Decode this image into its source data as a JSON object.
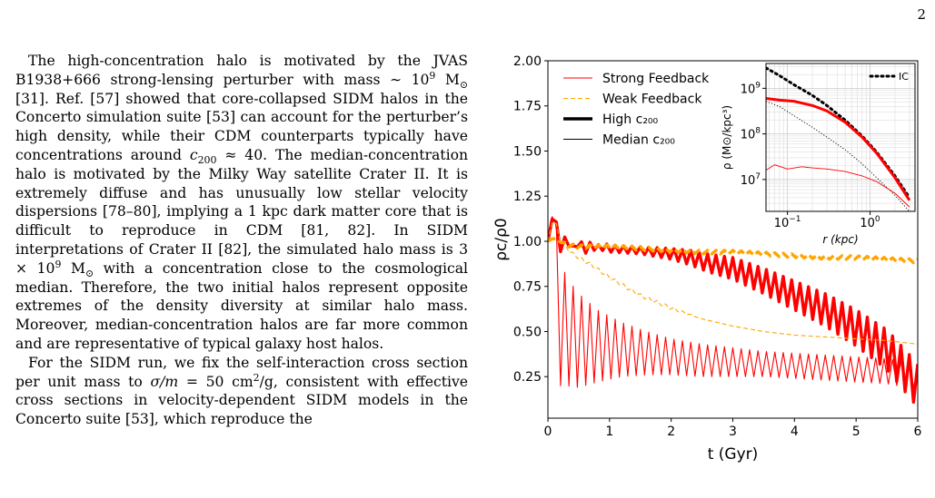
{
  "page": {
    "number": "2"
  },
  "text": {
    "p1": [
      {
        "t": "The high-concentration halo is motivated by the JVAS B1938+666 strong-lensing perturber with mass ∼ 10"
      },
      {
        "t": "9",
        "tag": "sup"
      },
      {
        "t": " M"
      },
      {
        "t": "⊙",
        "tag": "sub"
      },
      {
        "t": " [31]. Ref. [57] showed that core-collapsed SIDM halos in the Concerto simulation suite [53] can account for the perturber’s high density, while their CDM counterparts typically have concentrations around "
      },
      {
        "t": "c",
        "tag": "i"
      },
      {
        "t": "200",
        "tag": "sub"
      },
      {
        "t": " ≈ 40. The median-concentration halo is motivated by the Milky Way satellite Crater II. It is extremely diffuse and has unusually low stellar velocity dispersions [78–80], implying a 1 kpc dark matter core that is difficult to reproduce in CDM [81, 82]. In SIDM interpretations of Crater II [82], the simulated halo mass is 3 × 10"
      },
      {
        "t": "9",
        "tag": "sup"
      },
      {
        "t": " M"
      },
      {
        "t": "⊙",
        "tag": "sub"
      },
      {
        "t": " with a concentration close to the cosmological median. Therefore, the two initial halos represent opposite extremes of the density diversity at similar halo mass. Moreover, median-concentration halos are far more common and are representative of typical galaxy host halos."
      }
    ],
    "p2": [
      {
        "t": "For the SIDM run, we fix the self-interaction cross section per unit mass to "
      },
      {
        "t": "σ/m",
        "tag": "i"
      },
      {
        "t": " = 50 cm"
      },
      {
        "t": "2",
        "tag": "sup"
      },
      {
        "t": "/g, consistent with effective cross sections in velocity-dependent SIDM models in the Concerto suite [53], which reproduce the"
      }
    ]
  },
  "chart_data": [
    {
      "type": "line",
      "xlabel": "t (Gyr)",
      "ylabel": "ρc/ρ0",
      "xlim": [
        0,
        6
      ],
      "ylim": [
        0.02,
        2.0
      ],
      "xticks": [
        "0",
        "1",
        "2",
        "3",
        "4",
        "5",
        "6"
      ],
      "yticks": [
        "0.25",
        "0.50",
        "0.75",
        "1.00",
        "1.25",
        "1.50",
        "1.75",
        "2.00"
      ],
      "legend_location": "upper-left",
      "legend": [
        {
          "label": "Strong Feedback",
          "color": "#ff0000",
          "style": "solid",
          "weight": "thin"
        },
        {
          "label": "Weak Feedback",
          "color": "#ffa500",
          "style": "dashed",
          "weight": "thin"
        },
        {
          "label": "High c₂₀₀",
          "color": "#000000",
          "style": "solid",
          "weight": "thick"
        },
        {
          "label": "Median c₂₀₀",
          "color": "#000000",
          "style": "solid",
          "weight": "thin"
        }
      ],
      "series": [
        {
          "color": "#ff0000",
          "style": "solid",
          "weight": "thick",
          "x": [
            0.0,
            0.1,
            0.2,
            0.3,
            0.4,
            0.5,
            0.6,
            0.7,
            0.8,
            0.9,
            1.0,
            1.5,
            2.0,
            2.3,
            2.6,
            3.0,
            3.5,
            4.0,
            4.5,
            5.0,
            5.5,
            6.0
          ],
          "y": [
            1.0,
            1.18,
            0.96,
            1.02,
            0.95,
            1.0,
            0.95,
            0.98,
            0.96,
            0.97,
            0.96,
            0.95,
            0.93,
            0.91,
            0.88,
            0.85,
            0.78,
            0.7,
            0.62,
            0.52,
            0.4,
            0.2
          ],
          "osc_amp": [
            0.0,
            0.0,
            0.02,
            0.02,
            0.02,
            0.02,
            0.02,
            0.02,
            0.02,
            0.02,
            0.02,
            0.02,
            0.03,
            0.04,
            0.05,
            0.06,
            0.07,
            0.08,
            0.09,
            0.1,
            0.11,
            0.12
          ]
        },
        {
          "color": "#ff0000",
          "style": "solid",
          "weight": "thin",
          "x": [
            0.0,
            0.1,
            0.2,
            0.3,
            0.5,
            0.8,
            1.2,
            1.6,
            2.0,
            2.5,
            3.0,
            3.5,
            4.0,
            4.5,
            5.0,
            5.5,
            6.0
          ],
          "y": [
            1.0,
            1.2,
            0.55,
            0.5,
            0.45,
            0.42,
            0.4,
            0.38,
            0.36,
            0.34,
            0.33,
            0.32,
            0.31,
            0.3,
            0.29,
            0.28,
            0.25
          ],
          "osc_amp": [
            0.0,
            0.0,
            0.35,
            0.3,
            0.26,
            0.2,
            0.15,
            0.12,
            0.1,
            0.09,
            0.08,
            0.07,
            0.07,
            0.07,
            0.07,
            0.07,
            0.07
          ]
        },
        {
          "color": "#ffa500",
          "style": "dashed",
          "weight": "thick",
          "x": [
            0.0,
            0.1,
            0.3,
            0.5,
            1.0,
            1.5,
            2.0,
            2.5,
            3.0,
            3.5,
            4.0,
            4.5,
            5.0,
            5.5,
            6.0
          ],
          "y": [
            1.0,
            1.02,
            0.98,
            0.97,
            0.97,
            0.96,
            0.95,
            0.94,
            0.94,
            0.93,
            0.92,
            0.91,
            0.91,
            0.9,
            0.89
          ],
          "osc_amp": [
            0.0,
            0.0,
            0.01,
            0.01,
            0.01,
            0.01,
            0.01,
            0.01,
            0.01,
            0.01,
            0.01,
            0.01,
            0.01,
            0.01,
            0.01
          ]
        },
        {
          "color": "#ffa500",
          "style": "dashed",
          "weight": "thin",
          "x": [
            0.0,
            0.1,
            0.2,
            0.4,
            0.7,
            1.0,
            1.5,
            2.0,
            2.5,
            3.0,
            3.5,
            4.0,
            4.5,
            5.0,
            5.5,
            6.0
          ],
          "y": [
            1.0,
            1.15,
            1.0,
            0.93,
            0.87,
            0.8,
            0.7,
            0.63,
            0.57,
            0.53,
            0.5,
            0.48,
            0.47,
            0.46,
            0.45,
            0.43
          ],
          "osc_amp": [
            0.0,
            0.0,
            0.01,
            0.01,
            0.01,
            0.01,
            0.01,
            0.01,
            0.0,
            0.0,
            0.0,
            0.0,
            0.0,
            0.0,
            0.0,
            0.0
          ]
        }
      ]
    },
    {
      "type": "line",
      "inset": true,
      "xlabel": "r (kpc)",
      "ylabel": "ρ (M⊙/kpc³)",
      "xscale": "log",
      "yscale": "log",
      "xlim": [
        0.055,
        3.5
      ],
      "ylim": [
        2000000,
        3500000000
      ],
      "grid": true,
      "legend": [
        {
          "label": "IC",
          "color": "#000000",
          "style": "dotted",
          "weight": "thick"
        }
      ],
      "series": [
        {
          "label": "IC",
          "color": "#000000",
          "style": "dotted",
          "weight": "thick",
          "x": [
            0.055,
            0.08,
            0.12,
            0.2,
            0.3,
            0.5,
            0.8,
            1.2,
            2.0,
            3.0
          ],
          "y": [
            2800000000,
            1900000000,
            1200000000,
            700000000,
            420000000,
            200000000,
            90000000,
            40000000,
            12000000,
            4000000
          ]
        },
        {
          "color": "#ff0000",
          "style": "solid",
          "weight": "thick",
          "x": [
            0.055,
            0.08,
            0.12,
            0.2,
            0.3,
            0.5,
            0.8,
            1.2,
            2.0,
            3.0
          ],
          "y": [
            600000000,
            550000000,
            520000000,
            420000000,
            320000000,
            180000000,
            85000000,
            38000000,
            11000000,
            3500000
          ]
        },
        {
          "color": "#000000",
          "style": "dotted",
          "weight": "thin",
          "x": [
            0.055,
            0.08,
            0.12,
            0.2,
            0.3,
            0.5,
            0.8,
            1.2,
            2.0,
            3.0
          ],
          "y": [
            520000000,
            400000000,
            250000000,
            140000000,
            85000000,
            45000000,
            22000000,
            11000000,
            4500000,
            2000000
          ]
        },
        {
          "color": "#ff0000",
          "style": "solid",
          "weight": "thin",
          "x": [
            0.055,
            0.07,
            0.1,
            0.15,
            0.2,
            0.3,
            0.5,
            0.8,
            1.2,
            2.0,
            3.0
          ],
          "y": [
            16000000,
            21000000,
            17000000,
            19000000,
            18000000,
            17000000,
            15000000,
            12000000,
            9000000,
            5000000,
            2500000
          ]
        }
      ]
    }
  ]
}
